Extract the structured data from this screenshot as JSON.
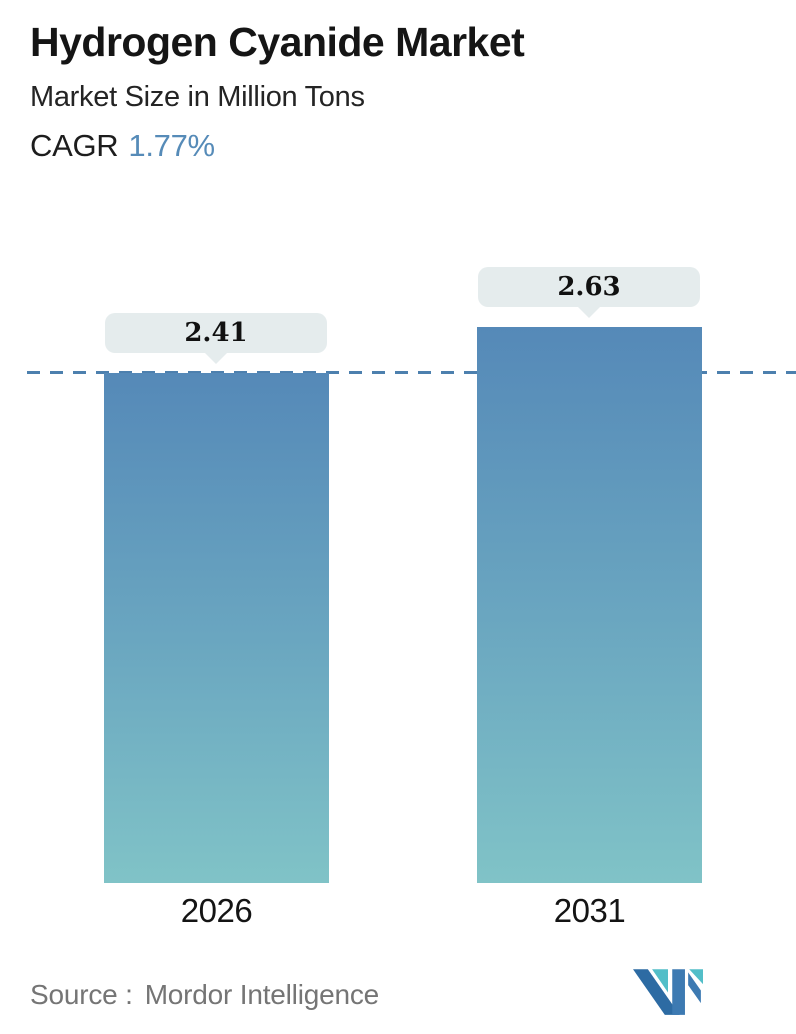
{
  "header": {
    "title": "Hydrogen Cyanide Market",
    "subtitle": "Market Size in Million Tons",
    "cagr_label": "CAGR",
    "cagr_value": "1.77%"
  },
  "chart_data": {
    "type": "bar",
    "title": "Hydrogen Cyanide Market",
    "subtitle": "Market Size in Million Tons",
    "unit": "Million Tons",
    "categories": [
      "2026",
      "2031"
    ],
    "values": [
      2.41,
      2.63
    ],
    "value_labels": [
      "2.41",
      "2.63"
    ],
    "cagr_percent": 1.77,
    "ylim": [
      0,
      3
    ],
    "grid": false,
    "legend": "none",
    "reference_line": {
      "value": 2.41,
      "style": "dashed",
      "color": "#4d80ae"
    },
    "bar_colors": {
      "top": "#5589b8",
      "bottom": "#80c3c7"
    },
    "label_badge_bg": "#e5eced"
  },
  "footer": {
    "source_label": "Source :",
    "source_value": "Mordor Intelligence",
    "logo_name": "mordor-intelligence-logo"
  },
  "colors": {
    "accent_blue": "#568bb8",
    "badge_bg": "#e5eced",
    "dashed_line": "#4d80ae",
    "text_dark": "#1a1a1a",
    "text_gray": "#757575",
    "logo_dark_blue": "#2d6ba3",
    "logo_blue": "#3d7ab2",
    "logo_teal": "#52bec8"
  }
}
